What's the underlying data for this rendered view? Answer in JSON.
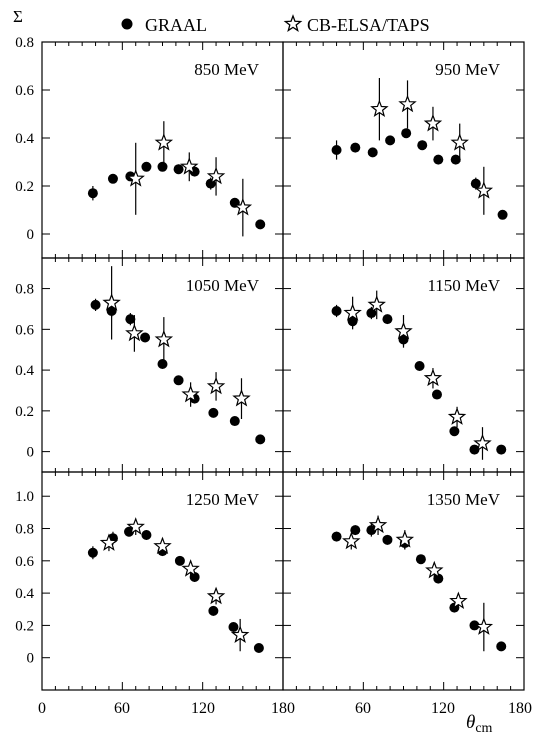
{
  "chart_data": {
    "type": "scatter",
    "ylabel": "Σ",
    "xlabel": "θ",
    "xlabel_sub": "cm",
    "xlim": [
      0,
      180
    ],
    "x_ticks": [
      "0",
      "60",
      "120",
      "180"
    ],
    "legend": {
      "placement": "top",
      "entries": [
        {
          "name": "GRAAL",
          "marker": "filled-circle"
        },
        {
          "name": "CB-ELSA/TAPS",
          "marker": "open-star"
        }
      ]
    },
    "grid": false,
    "panels": [
      {
        "label": "850 MeV",
        "ylim": [
          -0.1,
          0.8
        ],
        "y_ticks": [
          "0",
          "0.2",
          "0.4",
          "0.6",
          "0.8"
        ],
        "series": [
          {
            "name": "GRAAL",
            "points": [
              [
                38,
                0.17,
                0.03
              ],
              [
                53,
                0.23,
                0.015
              ],
              [
                66,
                0.24,
                0.015
              ],
              [
                78,
                0.28,
                0.015
              ],
              [
                90,
                0.28,
                0.015
              ],
              [
                102,
                0.27,
                0.02
              ],
              [
                114,
                0.26,
                0.02
              ],
              [
                126,
                0.21,
                0.025
              ],
              [
                144,
                0.13,
                0.02
              ],
              [
                163,
                0.04,
                0.015
              ]
            ]
          },
          {
            "name": "CB-ELSA/TAPS",
            "points": [
              [
                70,
                0.23,
                0.15
              ],
              [
                91,
                0.38,
                0.09
              ],
              [
                110,
                0.28,
                0.06
              ],
              [
                130,
                0.24,
                0.08
              ],
              [
                150,
                0.11,
                0.12
              ]
            ]
          }
        ]
      },
      {
        "label": "950 MeV",
        "ylim": [
          -0.1,
          0.8
        ],
        "y_ticks": [],
        "series": [
          {
            "name": "GRAAL",
            "points": [
              [
                40,
                0.35,
                0.04
              ],
              [
                54,
                0.36,
                0.015
              ],
              [
                67,
                0.34,
                0.015
              ],
              [
                80,
                0.39,
                0.015
              ],
              [
                92,
                0.42,
                0.02
              ],
              [
                104,
                0.37,
                0.02
              ],
              [
                116,
                0.31,
                0.015
              ],
              [
                129,
                0.31,
                0.02
              ],
              [
                144,
                0.21,
                0.025
              ],
              [
                164,
                0.08,
                0.015
              ]
            ]
          },
          {
            "name": "CB-ELSA/TAPS",
            "points": [
              [
                72,
                0.52,
                0.13
              ],
              [
                93,
                0.54,
                0.1
              ],
              [
                112,
                0.46,
                0.07
              ],
              [
                132,
                0.38,
                0.08
              ],
              [
                150,
                0.18,
                0.1
              ]
            ]
          }
        ]
      },
      {
        "label": "1050 MeV",
        "ylim": [
          -0.1,
          0.95
        ],
        "y_ticks": [
          "0",
          "0.2",
          "0.4",
          "0.6",
          "0.8"
        ],
        "series": [
          {
            "name": "GRAAL",
            "points": [
              [
                40,
                0.72,
                0.03
              ],
              [
                52,
                0.69,
                0.03
              ],
              [
                66,
                0.65,
                0.03
              ],
              [
                77,
                0.56,
                0.02
              ],
              [
                90,
                0.43,
                0.02
              ],
              [
                102,
                0.35,
                0.02
              ],
              [
                114,
                0.26,
                0.02
              ],
              [
                128,
                0.19,
                0.02
              ],
              [
                144,
                0.15,
                0.02
              ],
              [
                163,
                0.06,
                0.015
              ]
            ]
          },
          {
            "name": "CB-ELSA/TAPS",
            "points": [
              [
                52,
                0.73,
                0.18
              ],
              [
                69,
                0.58,
                0.09
              ],
              [
                91,
                0.55,
                0.11
              ],
              [
                111,
                0.28,
                0.06
              ],
              [
                130,
                0.32,
                0.07
              ],
              [
                149,
                0.26,
                0.1
              ]
            ]
          }
        ]
      },
      {
        "label": "1150 MeV",
        "ylim": [
          -0.1,
          0.95
        ],
        "y_ticks": [],
        "series": [
          {
            "name": "GRAAL",
            "points": [
              [
                40,
                0.69,
                0.03
              ],
              [
                52,
                0.64,
                0.03
              ],
              [
                66,
                0.68,
                0.03
              ],
              [
                78,
                0.65,
                0.02
              ],
              [
                90,
                0.55,
                0.03
              ],
              [
                102,
                0.42,
                0.02
              ],
              [
                115,
                0.28,
                0.02
              ],
              [
                128,
                0.1,
                0.02
              ],
              [
                143,
                0.01,
                0.015
              ],
              [
                163,
                0.01,
                0.01
              ]
            ]
          },
          {
            "name": "CB-ELSA/TAPS",
            "points": [
              [
                52,
                0.68,
                0.08
              ],
              [
                70,
                0.72,
                0.07
              ],
              [
                90,
                0.59,
                0.08
              ],
              [
                112,
                0.36,
                0.05
              ],
              [
                130,
                0.17,
                0.05
              ],
              [
                149,
                0.04,
                0.08
              ]
            ]
          }
        ]
      },
      {
        "label": "1250 MeV",
        "ylim": [
          -0.2,
          1.15
        ],
        "y_ticks": [
          "0",
          "0.2",
          "0.4",
          "0.6",
          "0.8",
          "1.0"
        ],
        "series": [
          {
            "name": "GRAAL",
            "points": [
              [
                38,
                0.65,
                0.04
              ],
              [
                53,
                0.74,
                0.04
              ],
              [
                65,
                0.78,
                0.03
              ],
              [
                78,
                0.76,
                0.03
              ],
              [
                90,
                0.66,
                0.03
              ],
              [
                103,
                0.6,
                0.02
              ],
              [
                114,
                0.5,
                0.03
              ],
              [
                128,
                0.29,
                0.03
              ],
              [
                143,
                0.19,
                0.02
              ],
              [
                162,
                0.06,
                0.015
              ]
            ]
          },
          {
            "name": "CB-ELSA/TAPS",
            "points": [
              [
                50,
                0.71,
                0.05
              ],
              [
                70,
                0.81,
                0.05
              ],
              [
                90,
                0.69,
                0.05
              ],
              [
                111,
                0.55,
                0.05
              ],
              [
                130,
                0.38,
                0.05
              ],
              [
                148,
                0.14,
                0.1
              ]
            ]
          }
        ]
      },
      {
        "label": "1350 MeV",
        "ylim": [
          -0.2,
          1.15
        ],
        "y_ticks": [],
        "series": [
          {
            "name": "GRAAL",
            "points": [
              [
                40,
                0.75,
                0.03
              ],
              [
                54,
                0.79,
                0.03
              ],
              [
                66,
                0.79,
                0.04
              ],
              [
                78,
                0.73,
                0.03
              ],
              [
                91,
                0.71,
                0.04
              ],
              [
                103,
                0.61,
                0.02
              ],
              [
                116,
                0.49,
                0.03
              ],
              [
                128,
                0.31,
                0.03
              ],
              [
                143,
                0.2,
                0.02
              ],
              [
                163,
                0.07,
                0.015
              ]
            ]
          },
          {
            "name": "CB-ELSA/TAPS",
            "points": [
              [
                51,
                0.72,
                0.05
              ],
              [
                71,
                0.82,
                0.06
              ],
              [
                91,
                0.73,
                0.06
              ],
              [
                113,
                0.54,
                0.05
              ],
              [
                131,
                0.35,
                0.05
              ],
              [
                150,
                0.19,
                0.15
              ]
            ]
          }
        ]
      }
    ]
  }
}
